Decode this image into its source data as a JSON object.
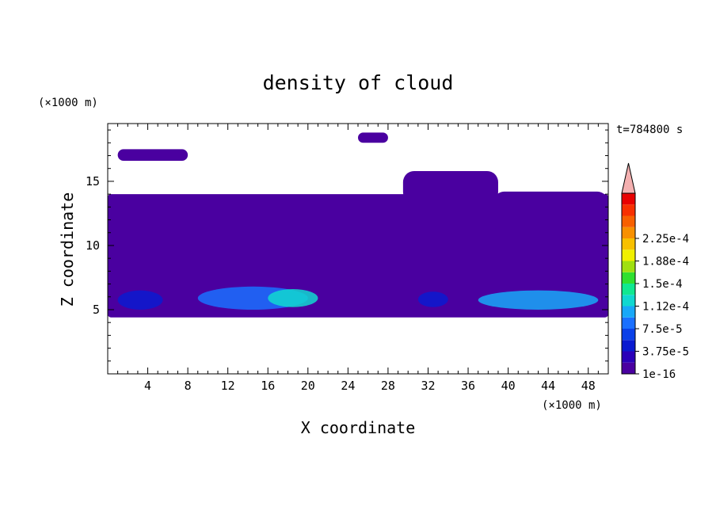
{
  "chart_data": {
    "type": "heatmap",
    "title": "density of cloud",
    "time_label": "t=784800 s",
    "xlabel": "X coordinate",
    "ylabel": "Z coordinate",
    "x_unit": "(×1000 m)",
    "y_unit": "(×1000 m)",
    "xlim": [
      0,
      50
    ],
    "ylim": [
      0,
      19.5
    ],
    "x_ticks": [
      4,
      8,
      12,
      16,
      20,
      24,
      28,
      32,
      36,
      40,
      44,
      48
    ],
    "y_ticks": [
      5,
      10,
      15
    ],
    "colorbar": {
      "labels": [
        "1e-16",
        "3.75e-5",
        "7.5e-5",
        "1.12e-4",
        "1.5e-4",
        "1.88e-4",
        "2.25e-4"
      ],
      "colors": [
        "#4a00a0",
        "#2a00b8",
        "#0a1ad0",
        "#0a40e8",
        "#1a70ff",
        "#18a8f8",
        "#10d8d0",
        "#10e890",
        "#30e030",
        "#a0e010",
        "#f0f000",
        "#f8c000",
        "#f89000",
        "#f86000",
        "#f83000",
        "#e80000"
      ],
      "extend_color": "#f4b0b0"
    },
    "fields": [
      {
        "level": 0,
        "shape": "cloud-layer",
        "x": [
          0,
          50
        ],
        "z": [
          4.4,
          14.0
        ]
      },
      {
        "level": 0,
        "shape": "cloud-patch",
        "x": [
          29.5,
          39
        ],
        "z": [
          13.3,
          15.8
        ]
      },
      {
        "level": 0,
        "shape": "cloud-patch",
        "x": [
          38.5,
          50
        ],
        "z": [
          11.0,
          14.2
        ]
      },
      {
        "level": 0,
        "shape": "cloud-patch",
        "x": [
          1,
          8
        ],
        "z": [
          16.6,
          17.5
        ]
      },
      {
        "level": 0,
        "shape": "cloud-patch",
        "x": [
          25,
          28
        ],
        "z": [
          18.0,
          18.8
        ]
      },
      {
        "level": 2,
        "shape": "core",
        "x": [
          1,
          5.5
        ],
        "z": [
          5.0,
          6.5
        ]
      },
      {
        "level": 4,
        "shape": "core",
        "x": [
          9,
          20
        ],
        "z": [
          5.0,
          6.8
        ]
      },
      {
        "level": 6,
        "shape": "core",
        "x": [
          16,
          21
        ],
        "z": [
          5.2,
          6.6
        ]
      },
      {
        "level": 2,
        "shape": "core",
        "x": [
          31,
          34
        ],
        "z": [
          5.2,
          6.4
        ]
      },
      {
        "level": 5,
        "shape": "core",
        "x": [
          37,
          49
        ],
        "z": [
          5.0,
          6.5
        ]
      }
    ]
  }
}
